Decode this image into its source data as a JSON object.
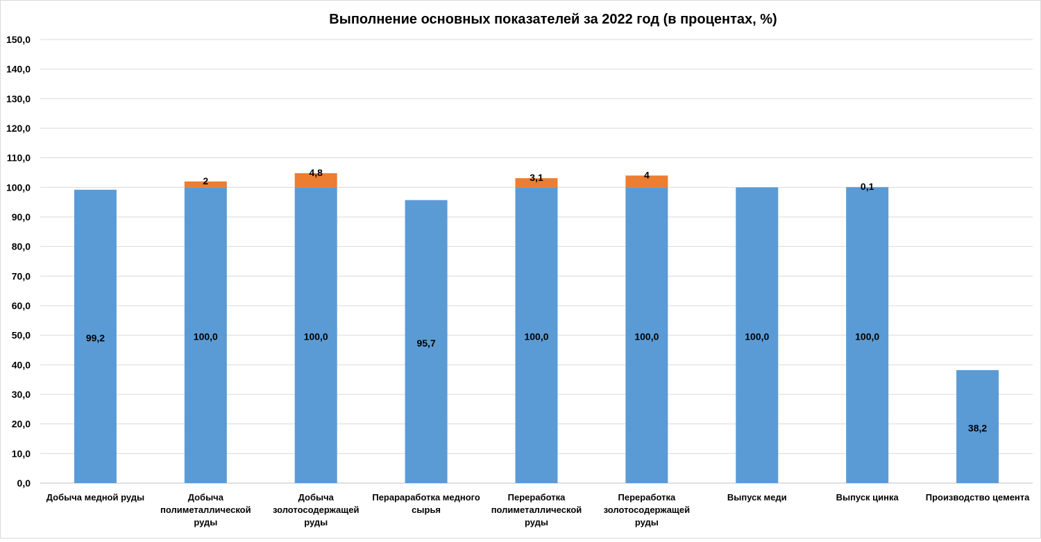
{
  "chart_data": {
    "type": "bar",
    "stacked": true,
    "title": "Выполнение основных показателей за 2022 год (в процентах, %)",
    "xlabel": "",
    "ylabel": "",
    "ylim": [
      0,
      150
    ],
    "y_tick_step": 10,
    "y_tick_labels": [
      "0,0",
      "10,0",
      "20,0",
      "30,0",
      "40,0",
      "50,0",
      "60,0",
      "70,0",
      "80,0",
      "90,0",
      "100,0",
      "110,0",
      "120,0",
      "130,0",
      "140,0",
      "150,0"
    ],
    "grid": true,
    "legend": "none",
    "categories": [
      "Добыча медной руды",
      "Добыча полиметаллической руды",
      "Добыча золотосодержащей руды",
      "Перараработка медного сырья",
      "Переработка полиметаллической руды",
      "Переработка золотосодержащей руды",
      "Выпуск меди",
      "Выпуск цинка",
      "Производство цемента"
    ],
    "category_lines": [
      [
        "Добыча медной руды"
      ],
      [
        "Добыча",
        "полиметаллической",
        "руды"
      ],
      [
        "Добыча",
        "золотосодержащей",
        "руды"
      ],
      [
        "Перараработка медного",
        "сырья"
      ],
      [
        "Переработка",
        "полиметаллической",
        "руды"
      ],
      [
        "Переработка",
        "золотосодержащей",
        "руды"
      ],
      [
        "Выпуск меди"
      ],
      [
        "Выпуск цинка"
      ],
      [
        "Производство цемента"
      ]
    ],
    "series": [
      {
        "values": [
          99.2,
          100.0,
          100.0,
          95.7,
          100.0,
          100.0,
          100.0,
          100.0,
          38.2
        ],
        "labels": [
          "99,2",
          "100,0",
          "100,0",
          "95,7",
          "100,0",
          "100,0",
          "100,0",
          "100,0",
          "38,2"
        ],
        "color": "#5b9bd5"
      },
      {
        "values": [
          null,
          2,
          4.8,
          null,
          3.1,
          4,
          null,
          0.1,
          null
        ],
        "labels": [
          "",
          "2",
          "4,8",
          "",
          "3,1",
          "4",
          "",
          "0,1",
          ""
        ],
        "color": "#ed7d31"
      }
    ]
  }
}
